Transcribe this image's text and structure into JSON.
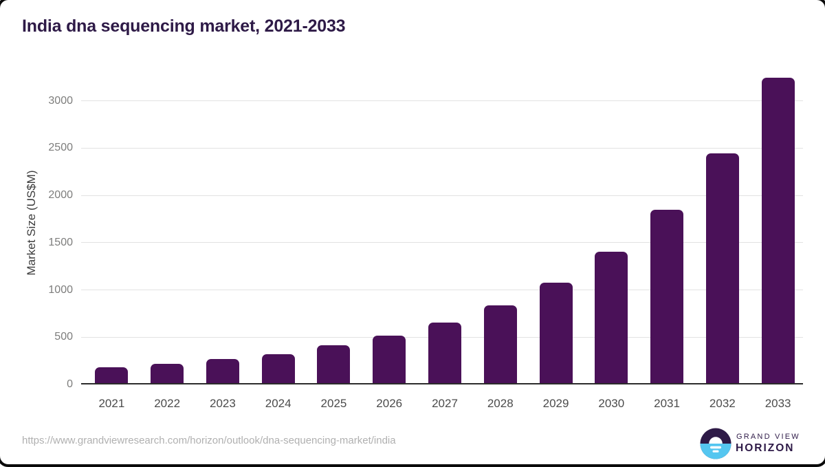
{
  "header": {
    "title": "India dna sequencing market, 2021-2033"
  },
  "footer": {
    "source_url": "https://www.grandviewresearch.com/horizon/outlook/dna-sequencing-market/india",
    "logo": {
      "top": "GRAND VIEW",
      "bottom": "HORIZON",
      "icon": "horizon-sun-circle-icon"
    }
  },
  "colors": {
    "bar": "#4a1158",
    "title_text": "#2e1a47",
    "grid": "#e2e2e2",
    "axis_line": "#2b2b2b",
    "y_tick_text": "#7d7d7c",
    "x_tick_text": "#4b4b4b",
    "url_text": "#b0b0b0",
    "logo_purple": "#2e1a47",
    "logo_blue": "#55c6f0"
  },
  "chart_data": {
    "type": "bar",
    "title": "India dna sequencing market, 2021-2033",
    "categories": [
      "2021",
      "2022",
      "2023",
      "2024",
      "2025",
      "2026",
      "2027",
      "2028",
      "2029",
      "2030",
      "2031",
      "2032",
      "2033"
    ],
    "values": [
      180,
      220,
      267,
      323,
      414,
      516,
      652,
      833,
      1080,
      1407,
      1849,
      2441,
      3246
    ],
    "xlabel": "",
    "ylabel": "Market Size (US$M)",
    "ylim": [
      0,
      3000
    ],
    "yticks": [
      0,
      500,
      1000,
      1500,
      2000,
      2500,
      3000
    ],
    "grid": true,
    "legend": false,
    "bar_color": "#4a1158"
  }
}
